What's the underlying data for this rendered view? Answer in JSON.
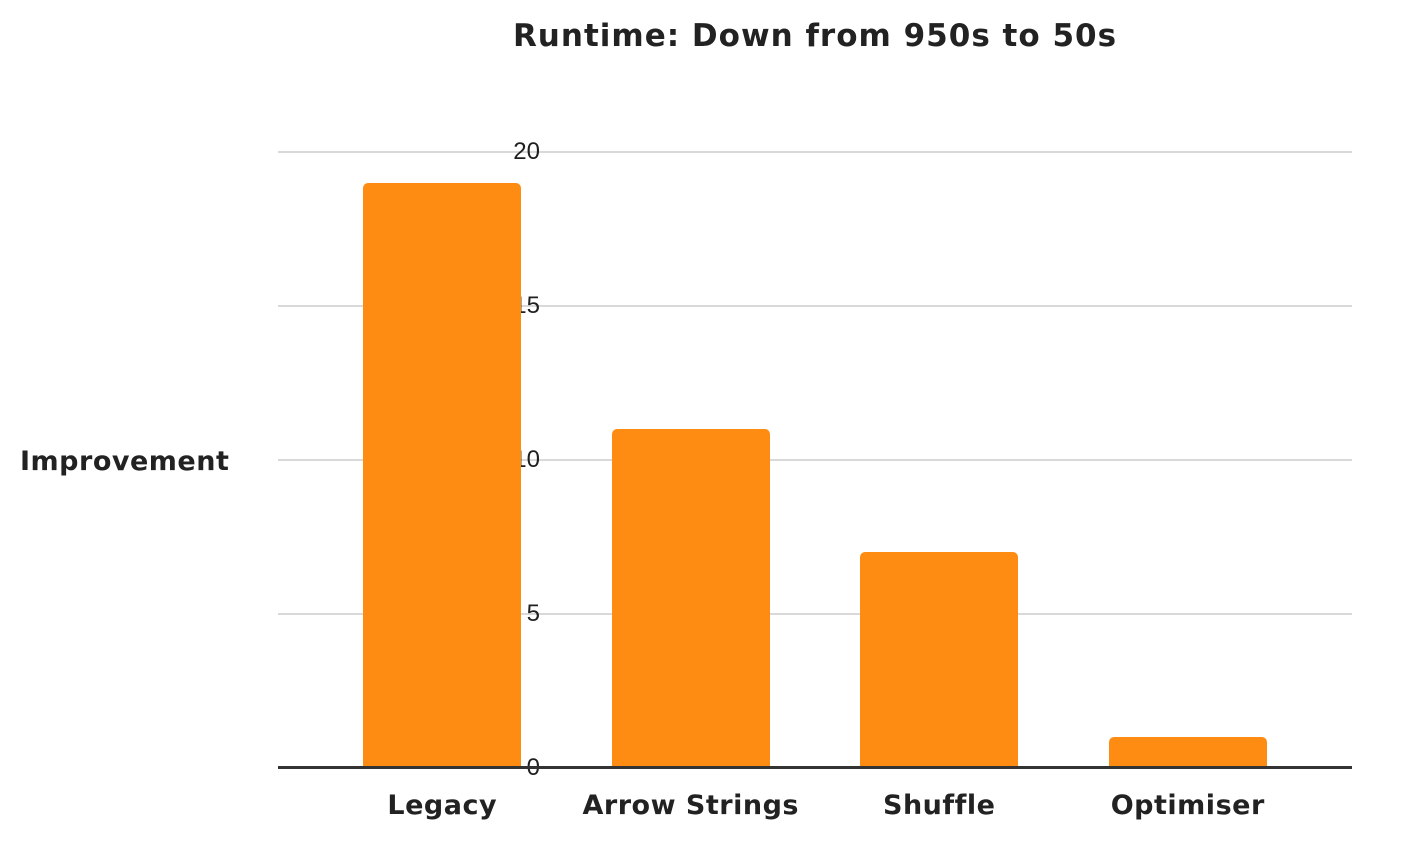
{
  "chart_data": {
    "type": "bar",
    "title": "Runtime: Down from 950s to 50s",
    "ylabel": "Improvement",
    "xlabel": "",
    "categories": [
      "Legacy",
      "Arrow Strings",
      "Shuffle",
      "Optimiser"
    ],
    "values": [
      19,
      11,
      7,
      1
    ],
    "ylim": [
      0,
      20
    ],
    "yticks": [
      0,
      5,
      10,
      15,
      20
    ],
    "grid": true,
    "legend": false,
    "colors": {
      "bar": "#FF8C12",
      "gridline": "#D9D9D9",
      "axis": "#333333",
      "tick_text": "#1F1F1F",
      "label_text": "#222222",
      "background": "#FFFFFF"
    }
  }
}
